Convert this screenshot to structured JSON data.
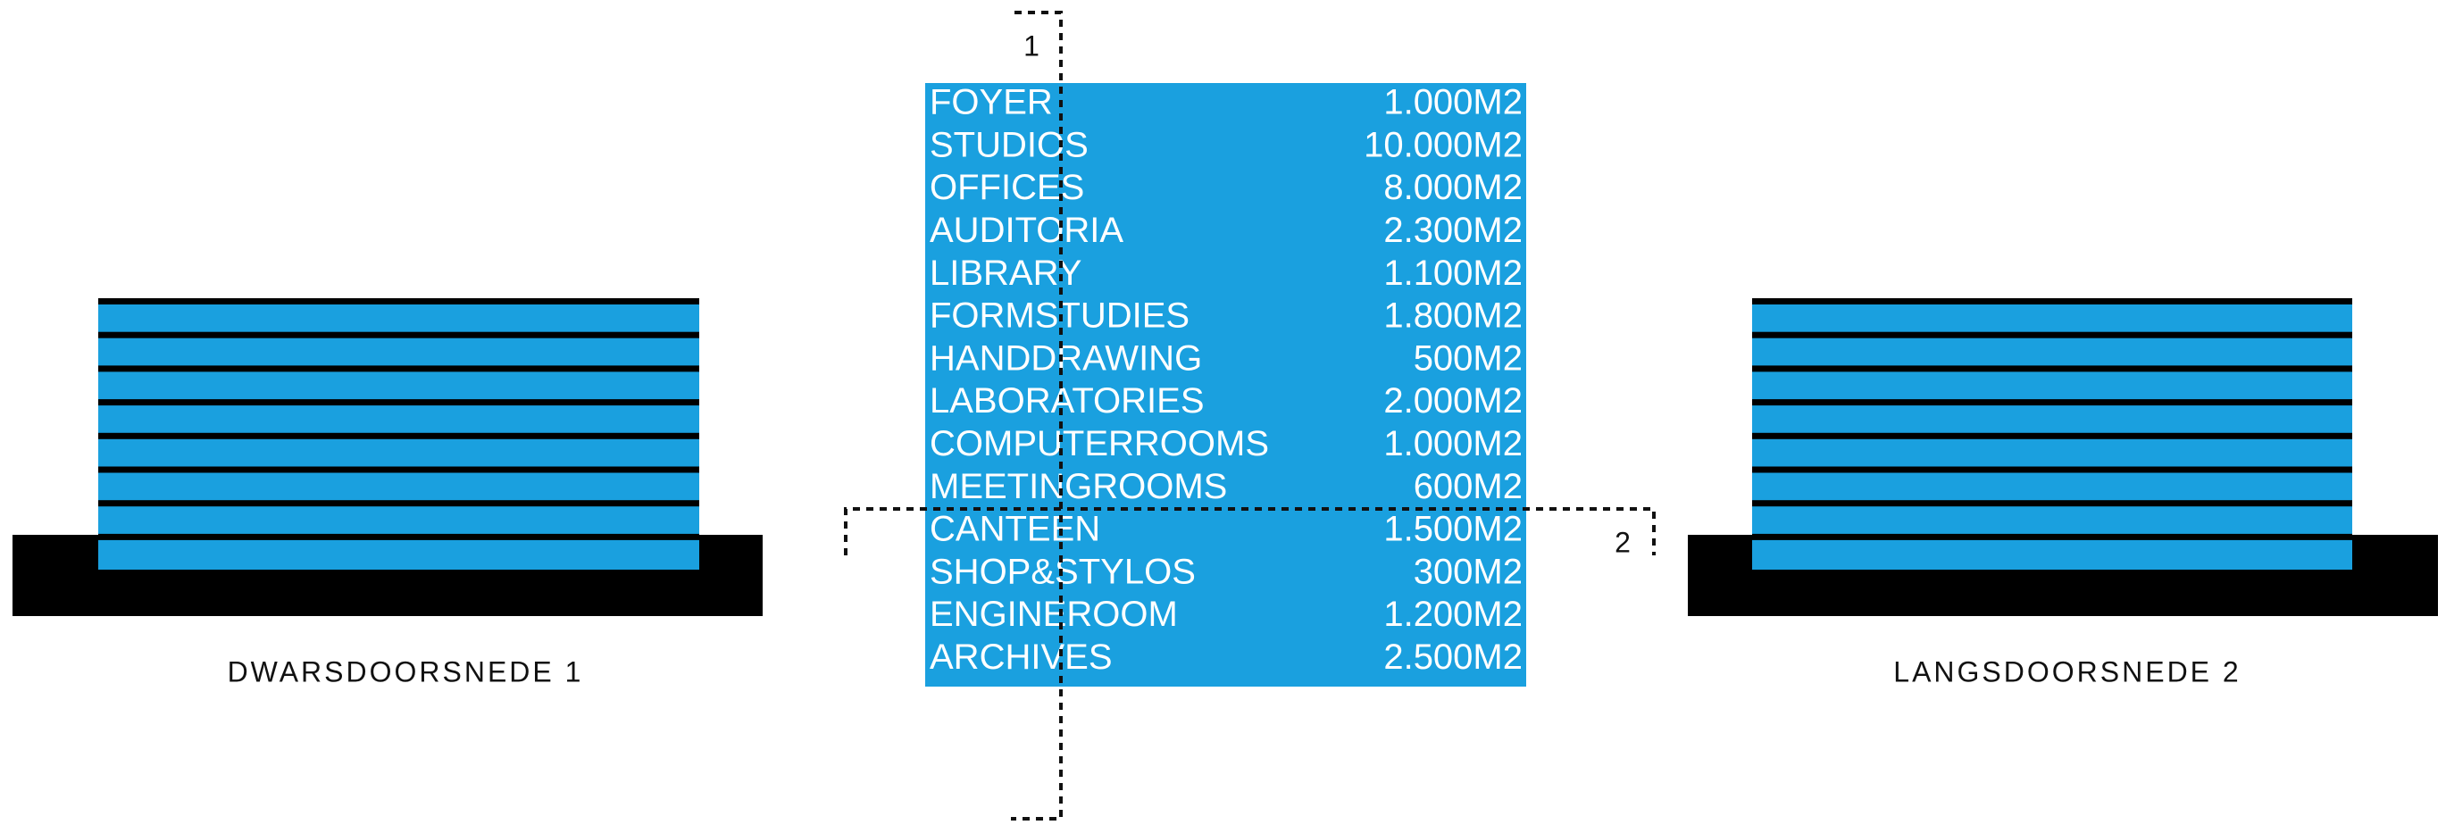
{
  "left_section": {
    "label": "DWARSDOORSNEDE 1"
  },
  "right_section": {
    "label": "LANGSDOORSNEDE 2"
  },
  "section_markers": [
    "1",
    "2"
  ],
  "table": {
    "rows": [
      [
        "FOYER",
        "1.000M2"
      ],
      [
        "STUDIOS",
        "10.000M2"
      ],
      [
        "OFFICES",
        "8.000M2"
      ],
      [
        "AUDITORIA",
        "2.300M2"
      ],
      [
        "LIBRARY",
        "1.100M2"
      ],
      [
        "FORMSTUDIES",
        "1.800M2"
      ],
      [
        "HANDDRAWING",
        "500M2"
      ],
      [
        "LABORATORIES",
        "2.000M2"
      ],
      [
        "COMPUTERROOMS",
        "1.000M2"
      ],
      [
        "MEETINGROOMS",
        "600M2"
      ],
      [
        "CANTEEN",
        "1.500M2"
      ],
      [
        "SHOP&STYLOS",
        "300M2"
      ],
      [
        "ENGINEROOM",
        "1.200M2"
      ],
      [
        "ARCHIVES",
        "2.500M2"
      ]
    ]
  }
}
